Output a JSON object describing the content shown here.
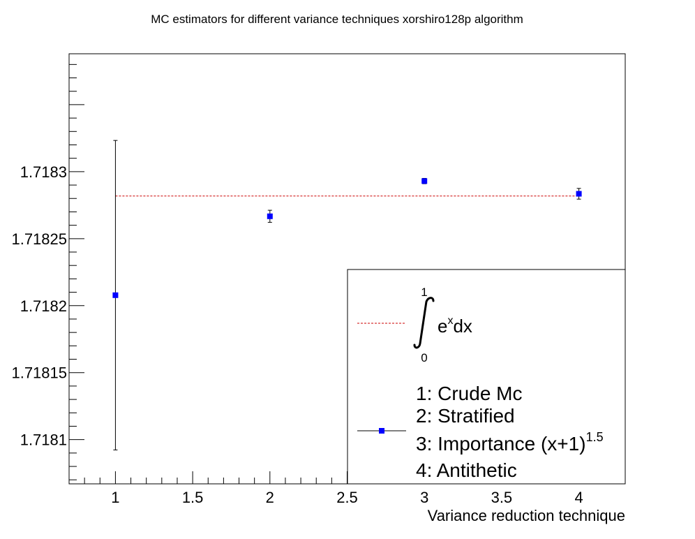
{
  "chart_data": {
    "type": "scatter",
    "title": "MC estimators for different variance techniques xorshiro128p algorithm",
    "xlabel": "Variance reduction technique",
    "ylabel": "",
    "xlim": [
      0.7,
      4.3
    ],
    "ylim": [
      1.718067,
      1.718388
    ],
    "x_ticks": [
      {
        "value": 1,
        "label": "1"
      },
      {
        "value": 1.5,
        "label": "1.5"
      },
      {
        "value": 2,
        "label": "2"
      },
      {
        "value": 2.5,
        "label": "2.5"
      },
      {
        "value": 3,
        "label": "3"
      },
      {
        "value": 3.5,
        "label": "3.5"
      },
      {
        "value": 4,
        "label": "4"
      }
    ],
    "y_ticks": [
      {
        "value": 1.7181,
        "label": "1.7181"
      },
      {
        "value": 1.71815,
        "label": "1.71815"
      },
      {
        "value": 1.7182,
        "label": "1.7182"
      },
      {
        "value": 1.71825,
        "label": "1.71825"
      },
      {
        "value": 1.7183,
        "label": "1.7183"
      }
    ],
    "grid": false,
    "legend_position": "bottom-right",
    "reference_line": {
      "value": 1.7182818,
      "x_range": [
        1,
        4
      ],
      "color": "#cc0000",
      "style": "dashed"
    },
    "series": [
      {
        "color": "#0000ff",
        "points": [
          {
            "x": 1,
            "y": 1.7182078,
            "error": 0.0001155
          },
          {
            "x": 2,
            "y": 1.7182667,
            "error": 4.5e-06
          },
          {
            "x": 3,
            "y": 1.718293,
            "error": 2e-06
          },
          {
            "x": 4,
            "y": 1.7182835,
            "error": 4e-06
          }
        ]
      }
    ],
    "legend": {
      "integral": {
        "upper_limit": "1",
        "lower_limit": "0",
        "integrand_base": "e",
        "integrand_exp": "x",
        "integrand_rest": "dx"
      },
      "entries": [
        {
          "text": "1: Crude Mc"
        },
        {
          "text": "2: Stratified"
        },
        {
          "text": "3: Importance (x+1)",
          "superscript": "1.5"
        },
        {
          "text": "4: Antithetic"
        }
      ]
    }
  }
}
